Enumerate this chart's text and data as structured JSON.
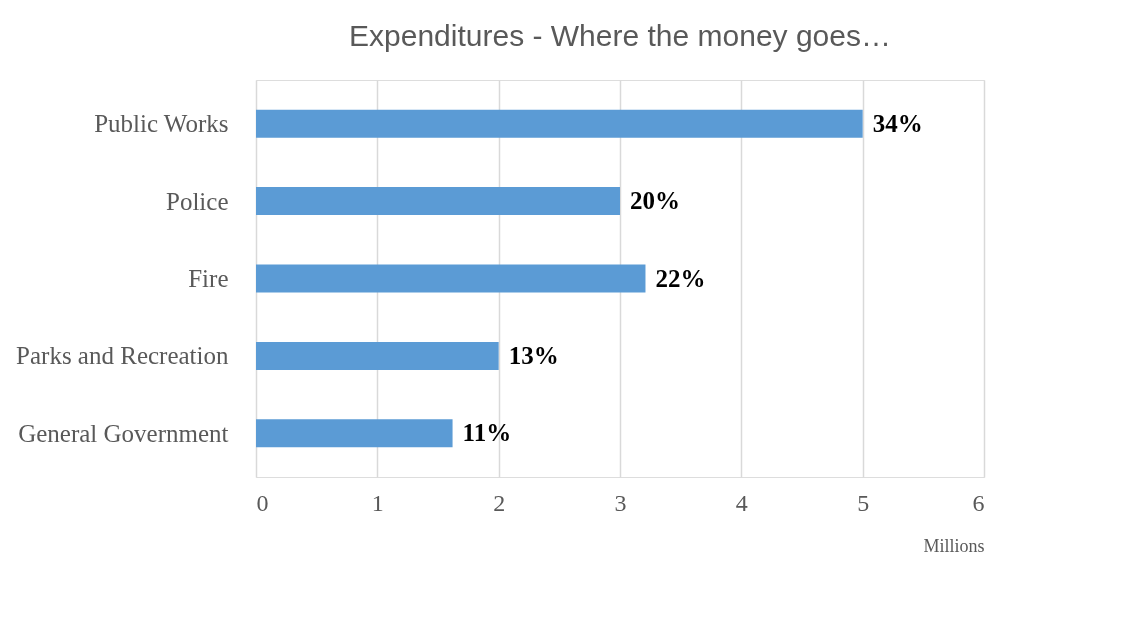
{
  "chart_data": {
    "type": "bar",
    "orientation": "horizontal",
    "title": "Expenditures - Where the money goes…",
    "categories": [
      "Public Works",
      "Police",
      "Fire",
      "Parks and Recreation",
      "General Government"
    ],
    "values": [
      5.0,
      3.0,
      3.21,
      2.0,
      1.62
    ],
    "annotations": [
      {
        "text": "34%",
        "x": 5.0,
        "y": "Public Works"
      },
      {
        "text": "20%",
        "x": 3.0,
        "y": "Police"
      },
      {
        "text": "22%",
        "x": 3.21,
        "y": "Fire"
      },
      {
        "text": "13%",
        "x": 2.0,
        "y": "Parks and Recreation"
      },
      {
        "text": "11%",
        "x": 1.62,
        "y": "General Government"
      }
    ],
    "color": "#5b9bd5",
    "xlim": [
      0,
      6
    ],
    "xticks": [
      0,
      1,
      2,
      3,
      4,
      5,
      6
    ],
    "xlabel": "Millions",
    "grid": "x"
  }
}
